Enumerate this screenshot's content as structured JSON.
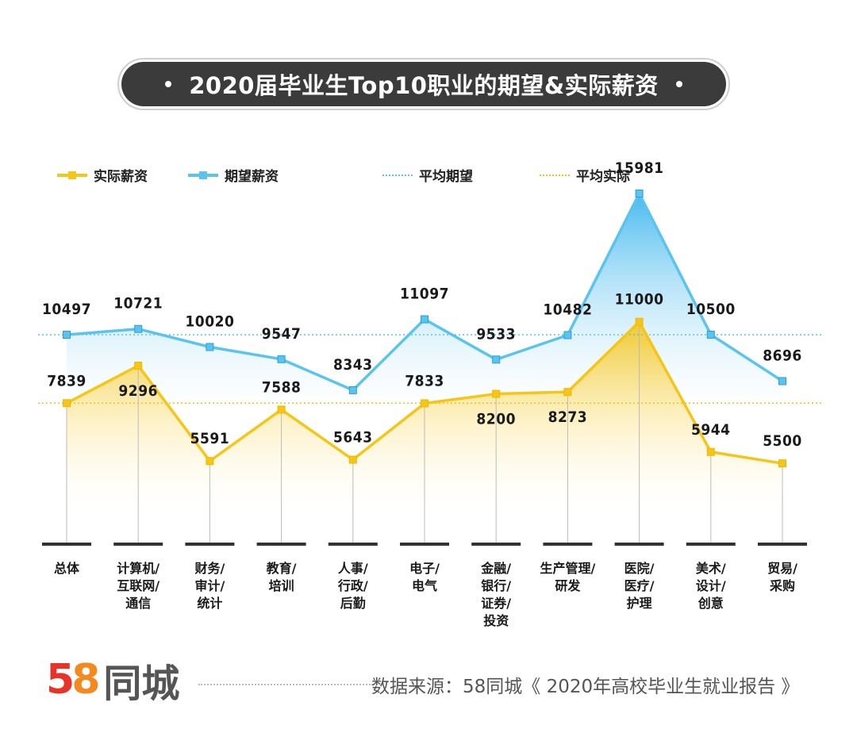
{
  "chart_data": {
    "type": "line",
    "title": "2020届毕业生Top10职业的期望&实际薪资",
    "categories": [
      "总体",
      "计算机/互联网/通信",
      "财务/审计/统计",
      "教育/培训",
      "人事/行政/后勤",
      "电子/电气",
      "金融/银行/证券/投资",
      "生产管理/研发",
      "医院/医疗/护理",
      "美术/设计/创意",
      "贸易/采购"
    ],
    "series": [
      {
        "name": "实际薪资",
        "color": "#f5c518",
        "values": [
          7839,
          9296,
          5591,
          7588,
          5643,
          7833,
          8200,
          8273,
          11000,
          5944,
          5500
        ]
      },
      {
        "name": "期望薪资",
        "color": "#5bc4ee",
        "values": [
          10497,
          10721,
          10020,
          9547,
          8343,
          11097,
          9533,
          10482,
          15981,
          10500,
          8696
        ]
      }
    ],
    "reference_lines": [
      {
        "name": "平均期望",
        "value": 10497,
        "color": "#5bc4ee",
        "style": "dotted"
      },
      {
        "name": "平均实际",
        "value": 7839,
        "color": "#e8c51a",
        "style": "dotted"
      }
    ],
    "legend_position": "top-left",
    "grid": false
  },
  "footer": {
    "logo_number_5": "5",
    "logo_number_8": "8",
    "logo_text": "同城",
    "source": "数据来源：58同城《 2020年高校毕业生就业报告 》"
  }
}
